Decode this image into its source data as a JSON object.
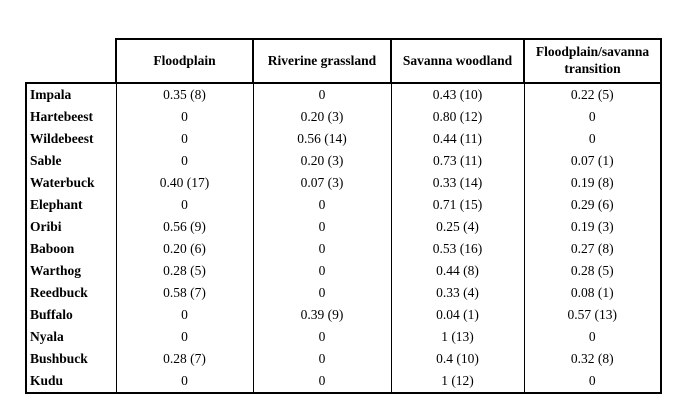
{
  "colors": {
    "background": "#ffffff",
    "border": "#000000",
    "text": "#000000"
  },
  "table": {
    "corner_label": "",
    "columns": [
      "Floodplain",
      "Riverine grassland",
      "Savanna woodland",
      "Floodplain/savanna transition"
    ],
    "rows": [
      {
        "label": "Impala",
        "values": [
          "0.35 (8)",
          "0",
          "0.43 (10)",
          "0.22 (5)"
        ]
      },
      {
        "label": "Hartebeest",
        "values": [
          "0",
          "0.20 (3)",
          "0.80 (12)",
          "0"
        ]
      },
      {
        "label": "Wildebeest",
        "values": [
          "0",
          "0.56 (14)",
          "0.44 (11)",
          "0"
        ]
      },
      {
        "label": "Sable",
        "values": [
          "0",
          "0.20 (3)",
          "0.73 (11)",
          "0.07 (1)"
        ]
      },
      {
        "label": "Waterbuck",
        "values": [
          "0.40 (17)",
          "0.07 (3)",
          "0.33 (14)",
          "0.19 (8)"
        ]
      },
      {
        "label": "Elephant",
        "values": [
          "0",
          "0",
          "0.71 (15)",
          "0.29 (6)"
        ]
      },
      {
        "label": "Oribi",
        "values": [
          "0.56 (9)",
          "0",
          "0.25 (4)",
          "0.19 (3)"
        ]
      },
      {
        "label": "Baboon",
        "values": [
          "0.20 (6)",
          "0",
          "0.53 (16)",
          "0.27 (8)"
        ]
      },
      {
        "label": "Warthog",
        "values": [
          "0.28 (5)",
          "0",
          "0.44 (8)",
          "0.28 (5)"
        ]
      },
      {
        "label": "Reedbuck",
        "values": [
          "0.58 (7)",
          "0",
          "0.33 (4)",
          "0.08 (1)"
        ]
      },
      {
        "label": "Buffalo",
        "values": [
          "0",
          "0.39 (9)",
          "0.04 (1)",
          "0.57 (13)"
        ]
      },
      {
        "label": "Nyala",
        "values": [
          "0",
          "0",
          "1 (13)",
          "0"
        ]
      },
      {
        "label": "Bushbuck",
        "values": [
          "0.28 (7)",
          "0",
          "0.4 (10)",
          "0.32 (8)"
        ]
      },
      {
        "label": "Kudu",
        "values": [
          "0",
          "0",
          "1 (12)",
          "0"
        ]
      }
    ]
  }
}
